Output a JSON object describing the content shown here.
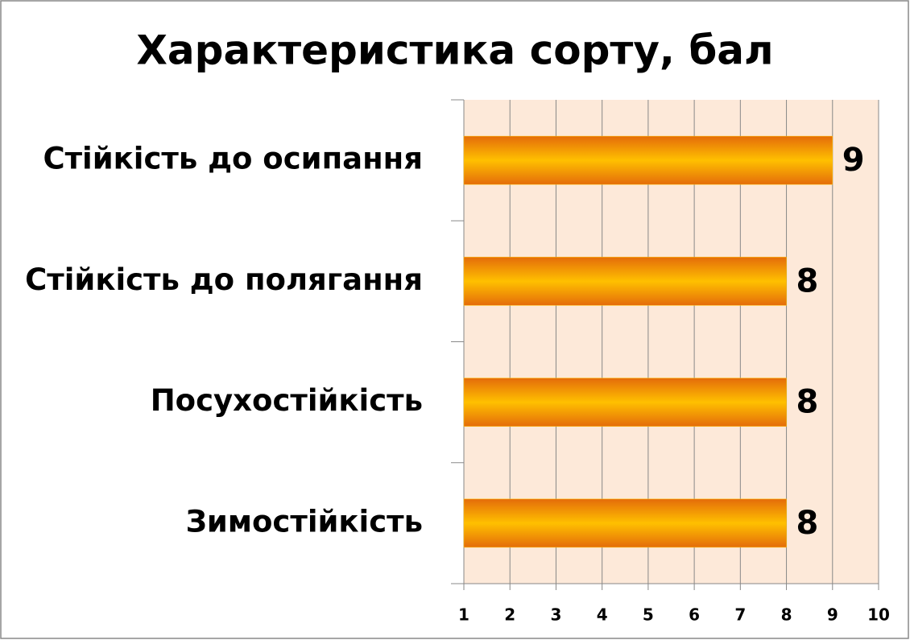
{
  "chart_data": {
    "type": "hbar",
    "title": "Характеристика сорту, бал",
    "categories": [
      "Стійкість до осипання",
      "Стійкість до полягання",
      "Посухостійкість",
      "Зимостійкість"
    ],
    "values": [
      9,
      8,
      8,
      8
    ],
    "xlim": [
      1,
      10
    ],
    "xticks": [
      1,
      2,
      3,
      4,
      5,
      6,
      7,
      8,
      9,
      10
    ],
    "grid": true,
    "color": "#ffc000"
  }
}
